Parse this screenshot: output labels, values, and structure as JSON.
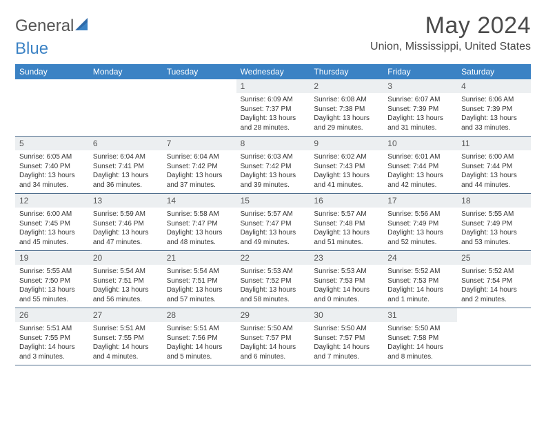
{
  "logo": {
    "part1": "General",
    "part2": "Blue"
  },
  "title": "May 2024",
  "location": "Union, Mississippi, United States",
  "colors": {
    "header_bg": "#3b82c4",
    "header_text": "#ffffff",
    "daynum_bg": "#eceff1",
    "week_border": "#4a6a8a",
    "text": "#333333",
    "background": "#ffffff"
  },
  "days_of_week": [
    "Sunday",
    "Monday",
    "Tuesday",
    "Wednesday",
    "Thursday",
    "Friday",
    "Saturday"
  ],
  "weeks": [
    [
      null,
      null,
      null,
      {
        "n": "1",
        "sr": "Sunrise: 6:09 AM",
        "ss": "Sunset: 7:37 PM",
        "dl1": "Daylight: 13 hours",
        "dl2": "and 28 minutes."
      },
      {
        "n": "2",
        "sr": "Sunrise: 6:08 AM",
        "ss": "Sunset: 7:38 PM",
        "dl1": "Daylight: 13 hours",
        "dl2": "and 29 minutes."
      },
      {
        "n": "3",
        "sr": "Sunrise: 6:07 AM",
        "ss": "Sunset: 7:39 PM",
        "dl1": "Daylight: 13 hours",
        "dl2": "and 31 minutes."
      },
      {
        "n": "4",
        "sr": "Sunrise: 6:06 AM",
        "ss": "Sunset: 7:39 PM",
        "dl1": "Daylight: 13 hours",
        "dl2": "and 33 minutes."
      }
    ],
    [
      {
        "n": "5",
        "sr": "Sunrise: 6:05 AM",
        "ss": "Sunset: 7:40 PM",
        "dl1": "Daylight: 13 hours",
        "dl2": "and 34 minutes."
      },
      {
        "n": "6",
        "sr": "Sunrise: 6:04 AM",
        "ss": "Sunset: 7:41 PM",
        "dl1": "Daylight: 13 hours",
        "dl2": "and 36 minutes."
      },
      {
        "n": "7",
        "sr": "Sunrise: 6:04 AM",
        "ss": "Sunset: 7:42 PM",
        "dl1": "Daylight: 13 hours",
        "dl2": "and 37 minutes."
      },
      {
        "n": "8",
        "sr": "Sunrise: 6:03 AM",
        "ss": "Sunset: 7:42 PM",
        "dl1": "Daylight: 13 hours",
        "dl2": "and 39 minutes."
      },
      {
        "n": "9",
        "sr": "Sunrise: 6:02 AM",
        "ss": "Sunset: 7:43 PM",
        "dl1": "Daylight: 13 hours",
        "dl2": "and 41 minutes."
      },
      {
        "n": "10",
        "sr": "Sunrise: 6:01 AM",
        "ss": "Sunset: 7:44 PM",
        "dl1": "Daylight: 13 hours",
        "dl2": "and 42 minutes."
      },
      {
        "n": "11",
        "sr": "Sunrise: 6:00 AM",
        "ss": "Sunset: 7:44 PM",
        "dl1": "Daylight: 13 hours",
        "dl2": "and 44 minutes."
      }
    ],
    [
      {
        "n": "12",
        "sr": "Sunrise: 6:00 AM",
        "ss": "Sunset: 7:45 PM",
        "dl1": "Daylight: 13 hours",
        "dl2": "and 45 minutes."
      },
      {
        "n": "13",
        "sr": "Sunrise: 5:59 AM",
        "ss": "Sunset: 7:46 PM",
        "dl1": "Daylight: 13 hours",
        "dl2": "and 47 minutes."
      },
      {
        "n": "14",
        "sr": "Sunrise: 5:58 AM",
        "ss": "Sunset: 7:47 PM",
        "dl1": "Daylight: 13 hours",
        "dl2": "and 48 minutes."
      },
      {
        "n": "15",
        "sr": "Sunrise: 5:57 AM",
        "ss": "Sunset: 7:47 PM",
        "dl1": "Daylight: 13 hours",
        "dl2": "and 49 minutes."
      },
      {
        "n": "16",
        "sr": "Sunrise: 5:57 AM",
        "ss": "Sunset: 7:48 PM",
        "dl1": "Daylight: 13 hours",
        "dl2": "and 51 minutes."
      },
      {
        "n": "17",
        "sr": "Sunrise: 5:56 AM",
        "ss": "Sunset: 7:49 PM",
        "dl1": "Daylight: 13 hours",
        "dl2": "and 52 minutes."
      },
      {
        "n": "18",
        "sr": "Sunrise: 5:55 AM",
        "ss": "Sunset: 7:49 PM",
        "dl1": "Daylight: 13 hours",
        "dl2": "and 53 minutes."
      }
    ],
    [
      {
        "n": "19",
        "sr": "Sunrise: 5:55 AM",
        "ss": "Sunset: 7:50 PM",
        "dl1": "Daylight: 13 hours",
        "dl2": "and 55 minutes."
      },
      {
        "n": "20",
        "sr": "Sunrise: 5:54 AM",
        "ss": "Sunset: 7:51 PM",
        "dl1": "Daylight: 13 hours",
        "dl2": "and 56 minutes."
      },
      {
        "n": "21",
        "sr": "Sunrise: 5:54 AM",
        "ss": "Sunset: 7:51 PM",
        "dl1": "Daylight: 13 hours",
        "dl2": "and 57 minutes."
      },
      {
        "n": "22",
        "sr": "Sunrise: 5:53 AM",
        "ss": "Sunset: 7:52 PM",
        "dl1": "Daylight: 13 hours",
        "dl2": "and 58 minutes."
      },
      {
        "n": "23",
        "sr": "Sunrise: 5:53 AM",
        "ss": "Sunset: 7:53 PM",
        "dl1": "Daylight: 14 hours",
        "dl2": "and 0 minutes."
      },
      {
        "n": "24",
        "sr": "Sunrise: 5:52 AM",
        "ss": "Sunset: 7:53 PM",
        "dl1": "Daylight: 14 hours",
        "dl2": "and 1 minute."
      },
      {
        "n": "25",
        "sr": "Sunrise: 5:52 AM",
        "ss": "Sunset: 7:54 PM",
        "dl1": "Daylight: 14 hours",
        "dl2": "and 2 minutes."
      }
    ],
    [
      {
        "n": "26",
        "sr": "Sunrise: 5:51 AM",
        "ss": "Sunset: 7:55 PM",
        "dl1": "Daylight: 14 hours",
        "dl2": "and 3 minutes."
      },
      {
        "n": "27",
        "sr": "Sunrise: 5:51 AM",
        "ss": "Sunset: 7:55 PM",
        "dl1": "Daylight: 14 hours",
        "dl2": "and 4 minutes."
      },
      {
        "n": "28",
        "sr": "Sunrise: 5:51 AM",
        "ss": "Sunset: 7:56 PM",
        "dl1": "Daylight: 14 hours",
        "dl2": "and 5 minutes."
      },
      {
        "n": "29",
        "sr": "Sunrise: 5:50 AM",
        "ss": "Sunset: 7:57 PM",
        "dl1": "Daylight: 14 hours",
        "dl2": "and 6 minutes."
      },
      {
        "n": "30",
        "sr": "Sunrise: 5:50 AM",
        "ss": "Sunset: 7:57 PM",
        "dl1": "Daylight: 14 hours",
        "dl2": "and 7 minutes."
      },
      {
        "n": "31",
        "sr": "Sunrise: 5:50 AM",
        "ss": "Sunset: 7:58 PM",
        "dl1": "Daylight: 14 hours",
        "dl2": "and 8 minutes."
      },
      null
    ]
  ]
}
